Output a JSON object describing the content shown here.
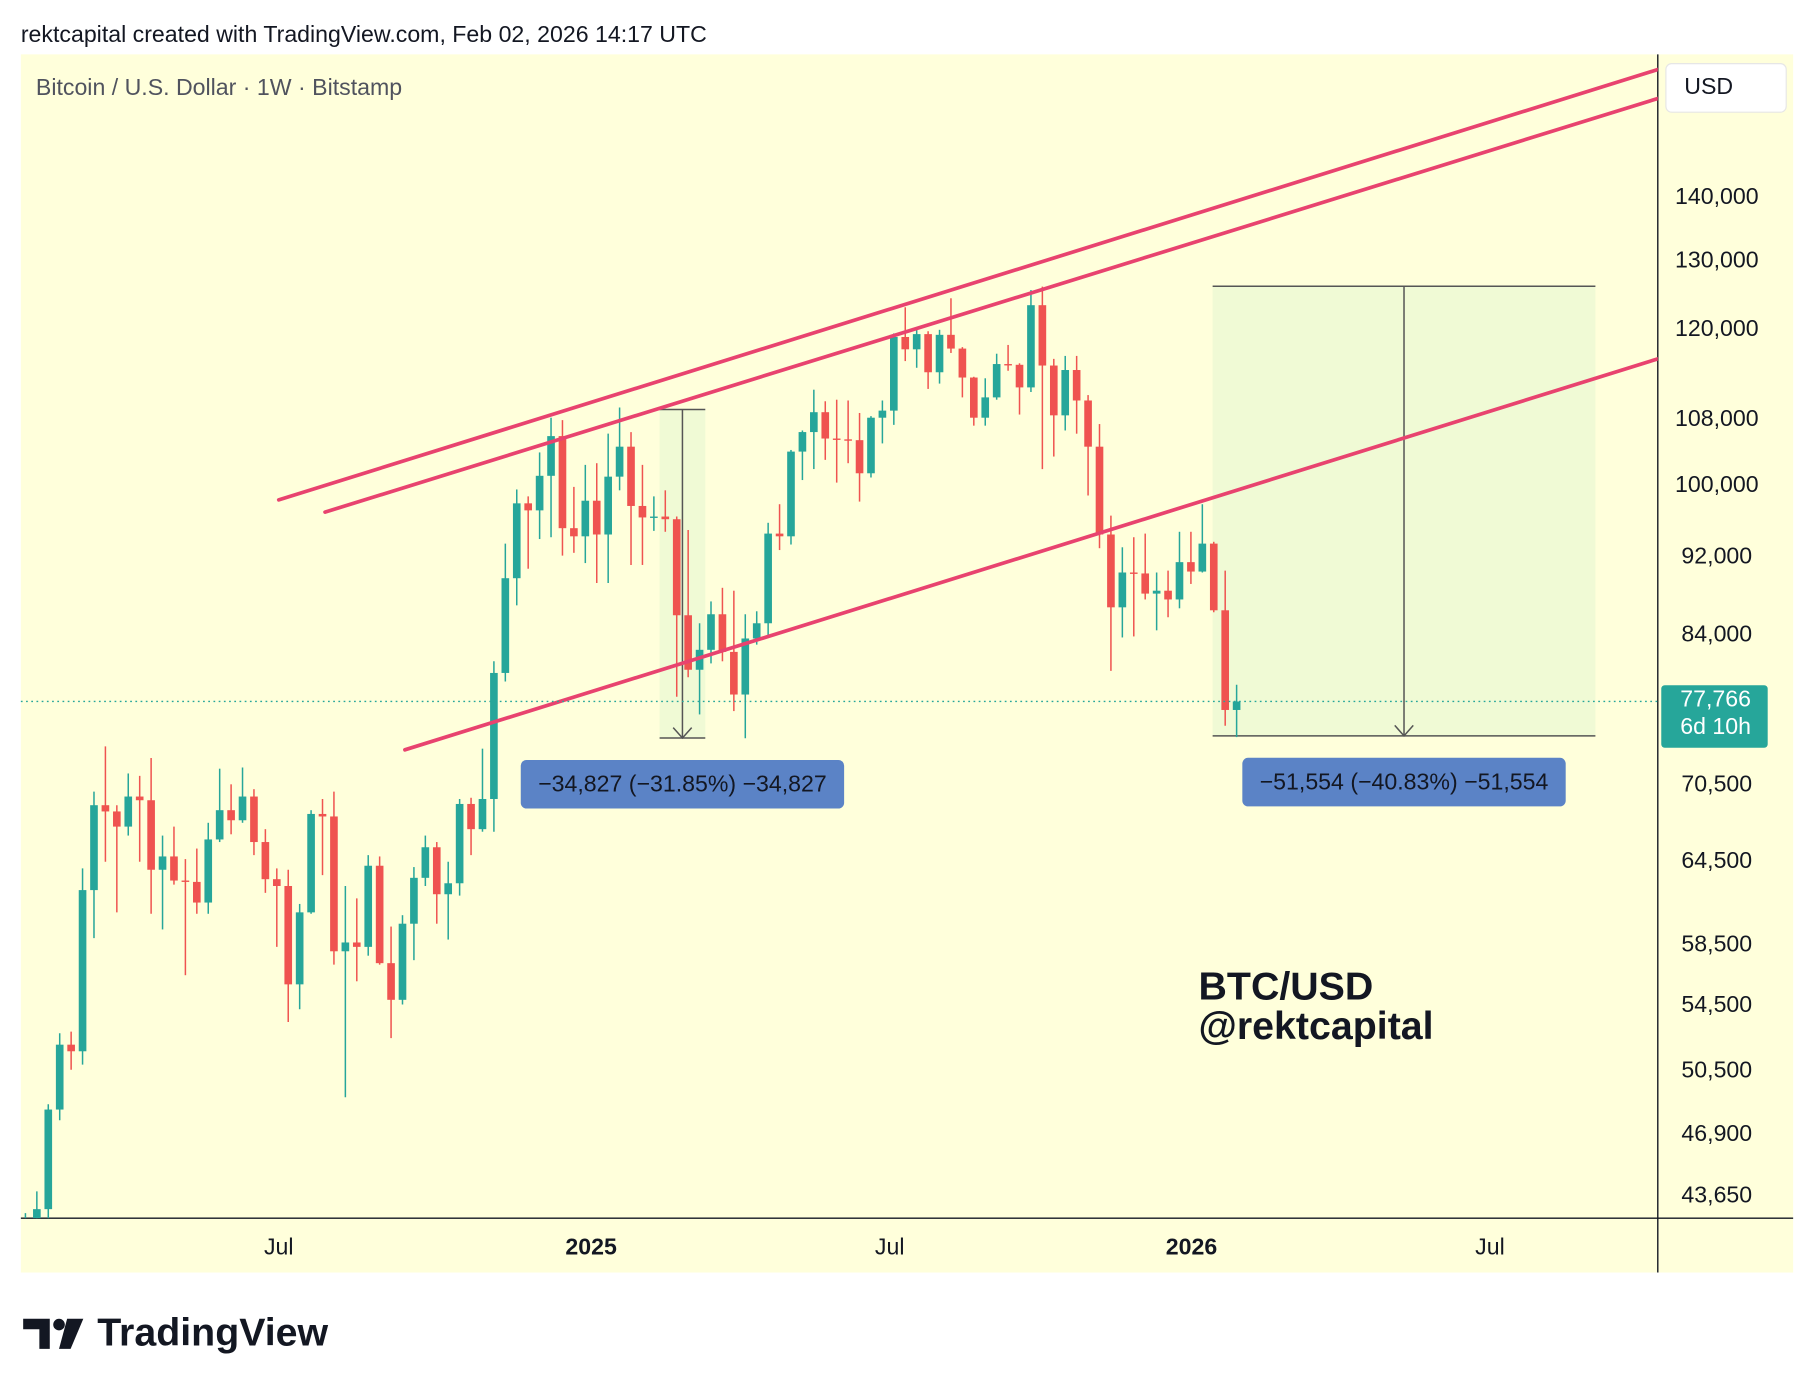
{
  "chart_data": {
    "type": "candlestick",
    "header": "rektcapital created with TradingView.com, Feb 02, 2026 14:17 UTC",
    "title": "Bitcoin / U.S. Dollar · 1W · Bitstamp",
    "currency": "USD",
    "watermark": [
      "BTC/USD",
      "@rektcapital"
    ],
    "footer": "TradingView",
    "log_scale": true,
    "up_color": "#26a69a",
    "down_color": "#ef5350",
    "open": [
      39900,
      42000,
      43000,
      48300,
      52100,
      51700,
      62400,
      68900,
      68400,
      67200,
      69600,
      69300,
      63900,
      64900,
      63100,
      63000,
      61500,
      66200,
      68500,
      67700,
      69600,
      66000,
      63200,
      62700,
      55900,
      60800,
      68200,
      68000,
      58100,
      58700,
      58400,
      64200,
      57300,
      54900,
      60000,
      63300,
      65600,
      62100,
      62900,
      69000,
      67000,
      69400,
      80400,
      89800,
      98000,
      97200,
      101200,
      106000,
      95200,
      94300,
      98300,
      94500,
      101100,
      104700,
      97700,
      96400,
      96500,
      96200,
      86000,
      80700,
      82600,
      86100,
      82400,
      78400,
      83700,
      85200,
      94600,
      94300,
      104100,
      106500,
      109000,
      105700,
      105600,
      105500,
      101500,
      108300,
      109200,
      119000,
      117300,
      119400,
      114200,
      119300,
      117400,
      113500,
      108300,
      110900,
      115300,
      115200,
      112200,
      123500,
      115100,
      108600,
      114500,
      110500,
      104700,
      94500,
      86800,
      90400,
      90300,
      88200,
      88500,
      87600,
      91500,
      90500,
      93500,
      86500,
      77000
    ],
    "high": [
      42800,
      43900,
      48600,
      52800,
      52900,
      64000,
      70000,
      73800,
      68900,
      71500,
      71300,
      72800,
      66500,
      67200,
      64700,
      65500,
      67500,
      71900,
      70600,
      72000,
      70200,
      67000,
      64000,
      63900,
      61400,
      68500,
      69400,
      70000,
      62700,
      61800,
      65000,
      64900,
      59800,
      60600,
      64100,
      66500,
      66000,
      64500,
      69400,
      69500,
      73600,
      81500,
      93500,
      99600,
      98800,
      104000,
      108300,
      108000,
      99900,
      102500,
      102700,
      106300,
      109600,
      106500,
      102500,
      98800,
      99500,
      96500,
      95000,
      85200,
      87400,
      88800,
      88500,
      86100,
      86400,
      95800,
      97900,
      104300,
      106700,
      111900,
      110400,
      110600,
      110500,
      108900,
      108500,
      110500,
      119500,
      123200,
      120200,
      119800,
      120000,
      124500,
      117600,
      113600,
      113400,
      116700,
      117900,
      115400,
      125700,
      126200,
      116000,
      116400,
      116400,
      111200,
      107500,
      96600,
      93100,
      94200,
      94600,
      90400,
      90600,
      94800,
      94800,
      97900,
      93700,
      90600,
      79300
    ],
    "low": [
      38500,
      41800,
      42500,
      47700,
      50600,
      50900,
      59000,
      64500,
      60800,
      66500,
      64500,
      60700,
      59600,
      62800,
      56500,
      60700,
      60700,
      66000,
      66600,
      67500,
      65000,
      62200,
      58400,
      53500,
      54300,
      60700,
      63500,
      57200,
      49000,
      56100,
      57800,
      57200,
      52500,
      54600,
      57500,
      62700,
      60000,
      58900,
      62000,
      65000,
      66800,
      66800,
      79600,
      87000,
      90800,
      94000,
      94200,
      92200,
      92500,
      91400,
      89300,
      89300,
      99500,
      91200,
      91200,
      94900,
      94800,
      78200,
      80000,
      76600,
      81300,
      81500,
      76900,
      74500,
      83100,
      83900,
      92800,
      93400,
      100700,
      102000,
      103100,
      100400,
      102700,
      98200,
      101000,
      105100,
      107400,
      115700,
      114800,
      112000,
      112700,
      116800,
      110900,
      107300,
      107300,
      110600,
      114400,
      108700,
      111600,
      102000,
      103500,
      106700,
      106300,
      98900,
      93000,
      80600,
      83800,
      83900,
      87600,
      84500,
      85800,
      86700,
      89200,
      90400,
      86300,
      75600,
      74600
    ],
    "close": [
      42000,
      43000,
      48300,
      52100,
      51700,
      62400,
      68900,
      68400,
      67200,
      69600,
      69300,
      63900,
      64900,
      63100,
      63000,
      61500,
      66200,
      68500,
      67700,
      69600,
      66000,
      63200,
      62700,
      55900,
      60800,
      68200,
      68000,
      58100,
      58700,
      58400,
      64200,
      57300,
      54900,
      60000,
      63300,
      65600,
      62100,
      62900,
      69000,
      67000,
      69400,
      80400,
      89800,
      98000,
      97200,
      101200,
      106000,
      95200,
      94300,
      98300,
      94500,
      101100,
      104700,
      97700,
      96400,
      96500,
      96200,
      86000,
      80700,
      82600,
      86100,
      82400,
      78400,
      83700,
      85200,
      94600,
      94300,
      104100,
      106500,
      109000,
      105700,
      105600,
      105500,
      101500,
      108300,
      109200,
      119000,
      117300,
      119400,
      114200,
      119300,
      117400,
      113500,
      108300,
      110900,
      115300,
      115200,
      112200,
      123500,
      115100,
      108600,
      114500,
      110500,
      104700,
      94500,
      86800,
      90400,
      90300,
      88200,
      88500,
      87600,
      91500,
      90500,
      93500,
      86500,
      77000,
      77766
    ],
    "last_close_label": "77,766",
    "countdown": "6d 10h",
    "xlim": [
      -0.4,
      142.86
    ],
    "xticks": [
      {
        "value": 22.17,
        "label": "Jul"
      },
      {
        "value": 49.51,
        "label": "2025"
      },
      {
        "value": 75.64,
        "label": "Jul"
      },
      {
        "value": 102.05,
        "label": "2026"
      },
      {
        "value": 128.17,
        "label": "Jul"
      }
    ],
    "ylim": [
      42550,
      165500
    ],
    "yticks": [
      {
        "value": 140000,
        "label": "140,000"
      },
      {
        "value": 130000,
        "label": "130,000"
      },
      {
        "value": 120000,
        "label": "120,000"
      },
      {
        "value": 108000,
        "label": "108,000"
      },
      {
        "value": 100000,
        "label": "100,000"
      },
      {
        "value": 92000,
        "label": "92,000"
      },
      {
        "value": 84000,
        "label": "84,000"
      },
      {
        "value": 70500,
        "label": "70,500"
      },
      {
        "value": 64500,
        "label": "64,500"
      },
      {
        "value": 58500,
        "label": "58,500"
      },
      {
        "value": 54500,
        "label": "54,500"
      },
      {
        "value": 50500,
        "label": "50,500"
      },
      {
        "value": 46900,
        "label": "46,900"
      },
      {
        "value": 43650,
        "label": "43,650"
      }
    ],
    "trendline_color": "#e8436f",
    "trendlines": [
      {
        "x": [
          22.17,
          142.86
        ],
        "y": [
          98400,
          162600
        ]
      },
      {
        "x": [
          26.22,
          142.86
        ],
        "y": [
          97000,
          157200
        ]
      },
      {
        "x": [
          33.21,
          142.86
        ],
        "y": [
          73500,
          116000
        ]
      }
    ],
    "measures": [
      {
        "start": 55.5,
        "end": 59.5,
        "top": 109350,
        "bottom": 74523,
        "label": "−34,827 (−31.85%) −34,827"
      },
      {
        "start": 103.9,
        "end": 137.4,
        "top": 126265,
        "bottom": 74711,
        "label": "−51,554 (−40.83%) −51,554"
      }
    ]
  }
}
